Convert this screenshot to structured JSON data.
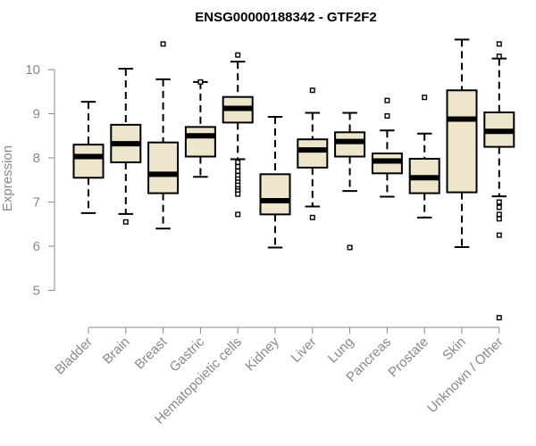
{
  "chart_data": {
    "type": "boxplot",
    "title": "ENSG00000188342 - GTF2F2",
    "ylabel": "Expression",
    "xlabel": "",
    "ylim": [
      4.3,
      10.9
    ],
    "yticks": [
      5,
      6,
      7,
      8,
      9,
      10
    ],
    "categories": [
      "Bladder",
      "Brain",
      "Breast",
      "Gastric",
      "Hematopoietic cells",
      "Kidney",
      "Liver",
      "Lung",
      "Pancreas",
      "Prostate",
      "Skin",
      "Unknown / Other"
    ],
    "box_color": "#ede5cc",
    "series": [
      {
        "category": "Bladder",
        "min": 6.75,
        "q1": 7.55,
        "median": 8.03,
        "q3": 8.3,
        "max": 9.27,
        "outliers": []
      },
      {
        "category": "Brain",
        "min": 6.73,
        "q1": 7.9,
        "median": 8.32,
        "q3": 8.75,
        "max": 10.02,
        "outliers": [
          6.55
        ]
      },
      {
        "category": "Breast",
        "min": 6.4,
        "q1": 7.2,
        "median": 7.63,
        "q3": 8.35,
        "max": 9.78,
        "outliers": [
          10.58
        ]
      },
      {
        "category": "Gastric",
        "min": 7.57,
        "q1": 8.03,
        "median": 8.5,
        "q3": 8.7,
        "max": 9.72,
        "outliers": [
          9.72
        ]
      },
      {
        "category": "Hematopoietic cells",
        "min": 7.97,
        "q1": 8.8,
        "median": 9.12,
        "q3": 9.38,
        "max": 10.18,
        "outliers": [
          10.33,
          7.9,
          7.8,
          7.7,
          7.6,
          7.52,
          7.45,
          7.38,
          7.3,
          7.25,
          7.18,
          6.72
        ]
      },
      {
        "category": "Kidney",
        "min": 5.97,
        "q1": 6.72,
        "median": 7.03,
        "q3": 7.63,
        "max": 8.93,
        "outliers": []
      },
      {
        "category": "Liver",
        "min": 6.9,
        "q1": 7.78,
        "median": 8.18,
        "q3": 8.42,
        "max": 9.02,
        "outliers": [
          9.53,
          6.65
        ]
      },
      {
        "category": "Lung",
        "min": 7.25,
        "q1": 8.03,
        "median": 8.37,
        "q3": 8.58,
        "max": 9.02,
        "outliers": [
          5.97
        ]
      },
      {
        "category": "Pancreas",
        "min": 7.12,
        "q1": 7.65,
        "median": 7.93,
        "q3": 8.1,
        "max": 8.62,
        "outliers": [
          9.3,
          8.95
        ]
      },
      {
        "category": "Prostate",
        "min": 6.65,
        "q1": 7.2,
        "median": 7.55,
        "q3": 7.98,
        "max": 8.55,
        "outliers": [
          9.37
        ]
      },
      {
        "category": "Skin",
        "min": 5.98,
        "q1": 7.22,
        "median": 8.88,
        "q3": 9.53,
        "max": 10.68,
        "outliers": []
      },
      {
        "category": "Unknown / Other",
        "min": 7.13,
        "q1": 8.25,
        "median": 8.6,
        "q3": 9.03,
        "max": 10.25,
        "outliers": [
          10.58,
          10.3,
          7.0,
          6.88,
          6.72,
          6.62,
          6.25,
          4.38
        ]
      }
    ]
  }
}
